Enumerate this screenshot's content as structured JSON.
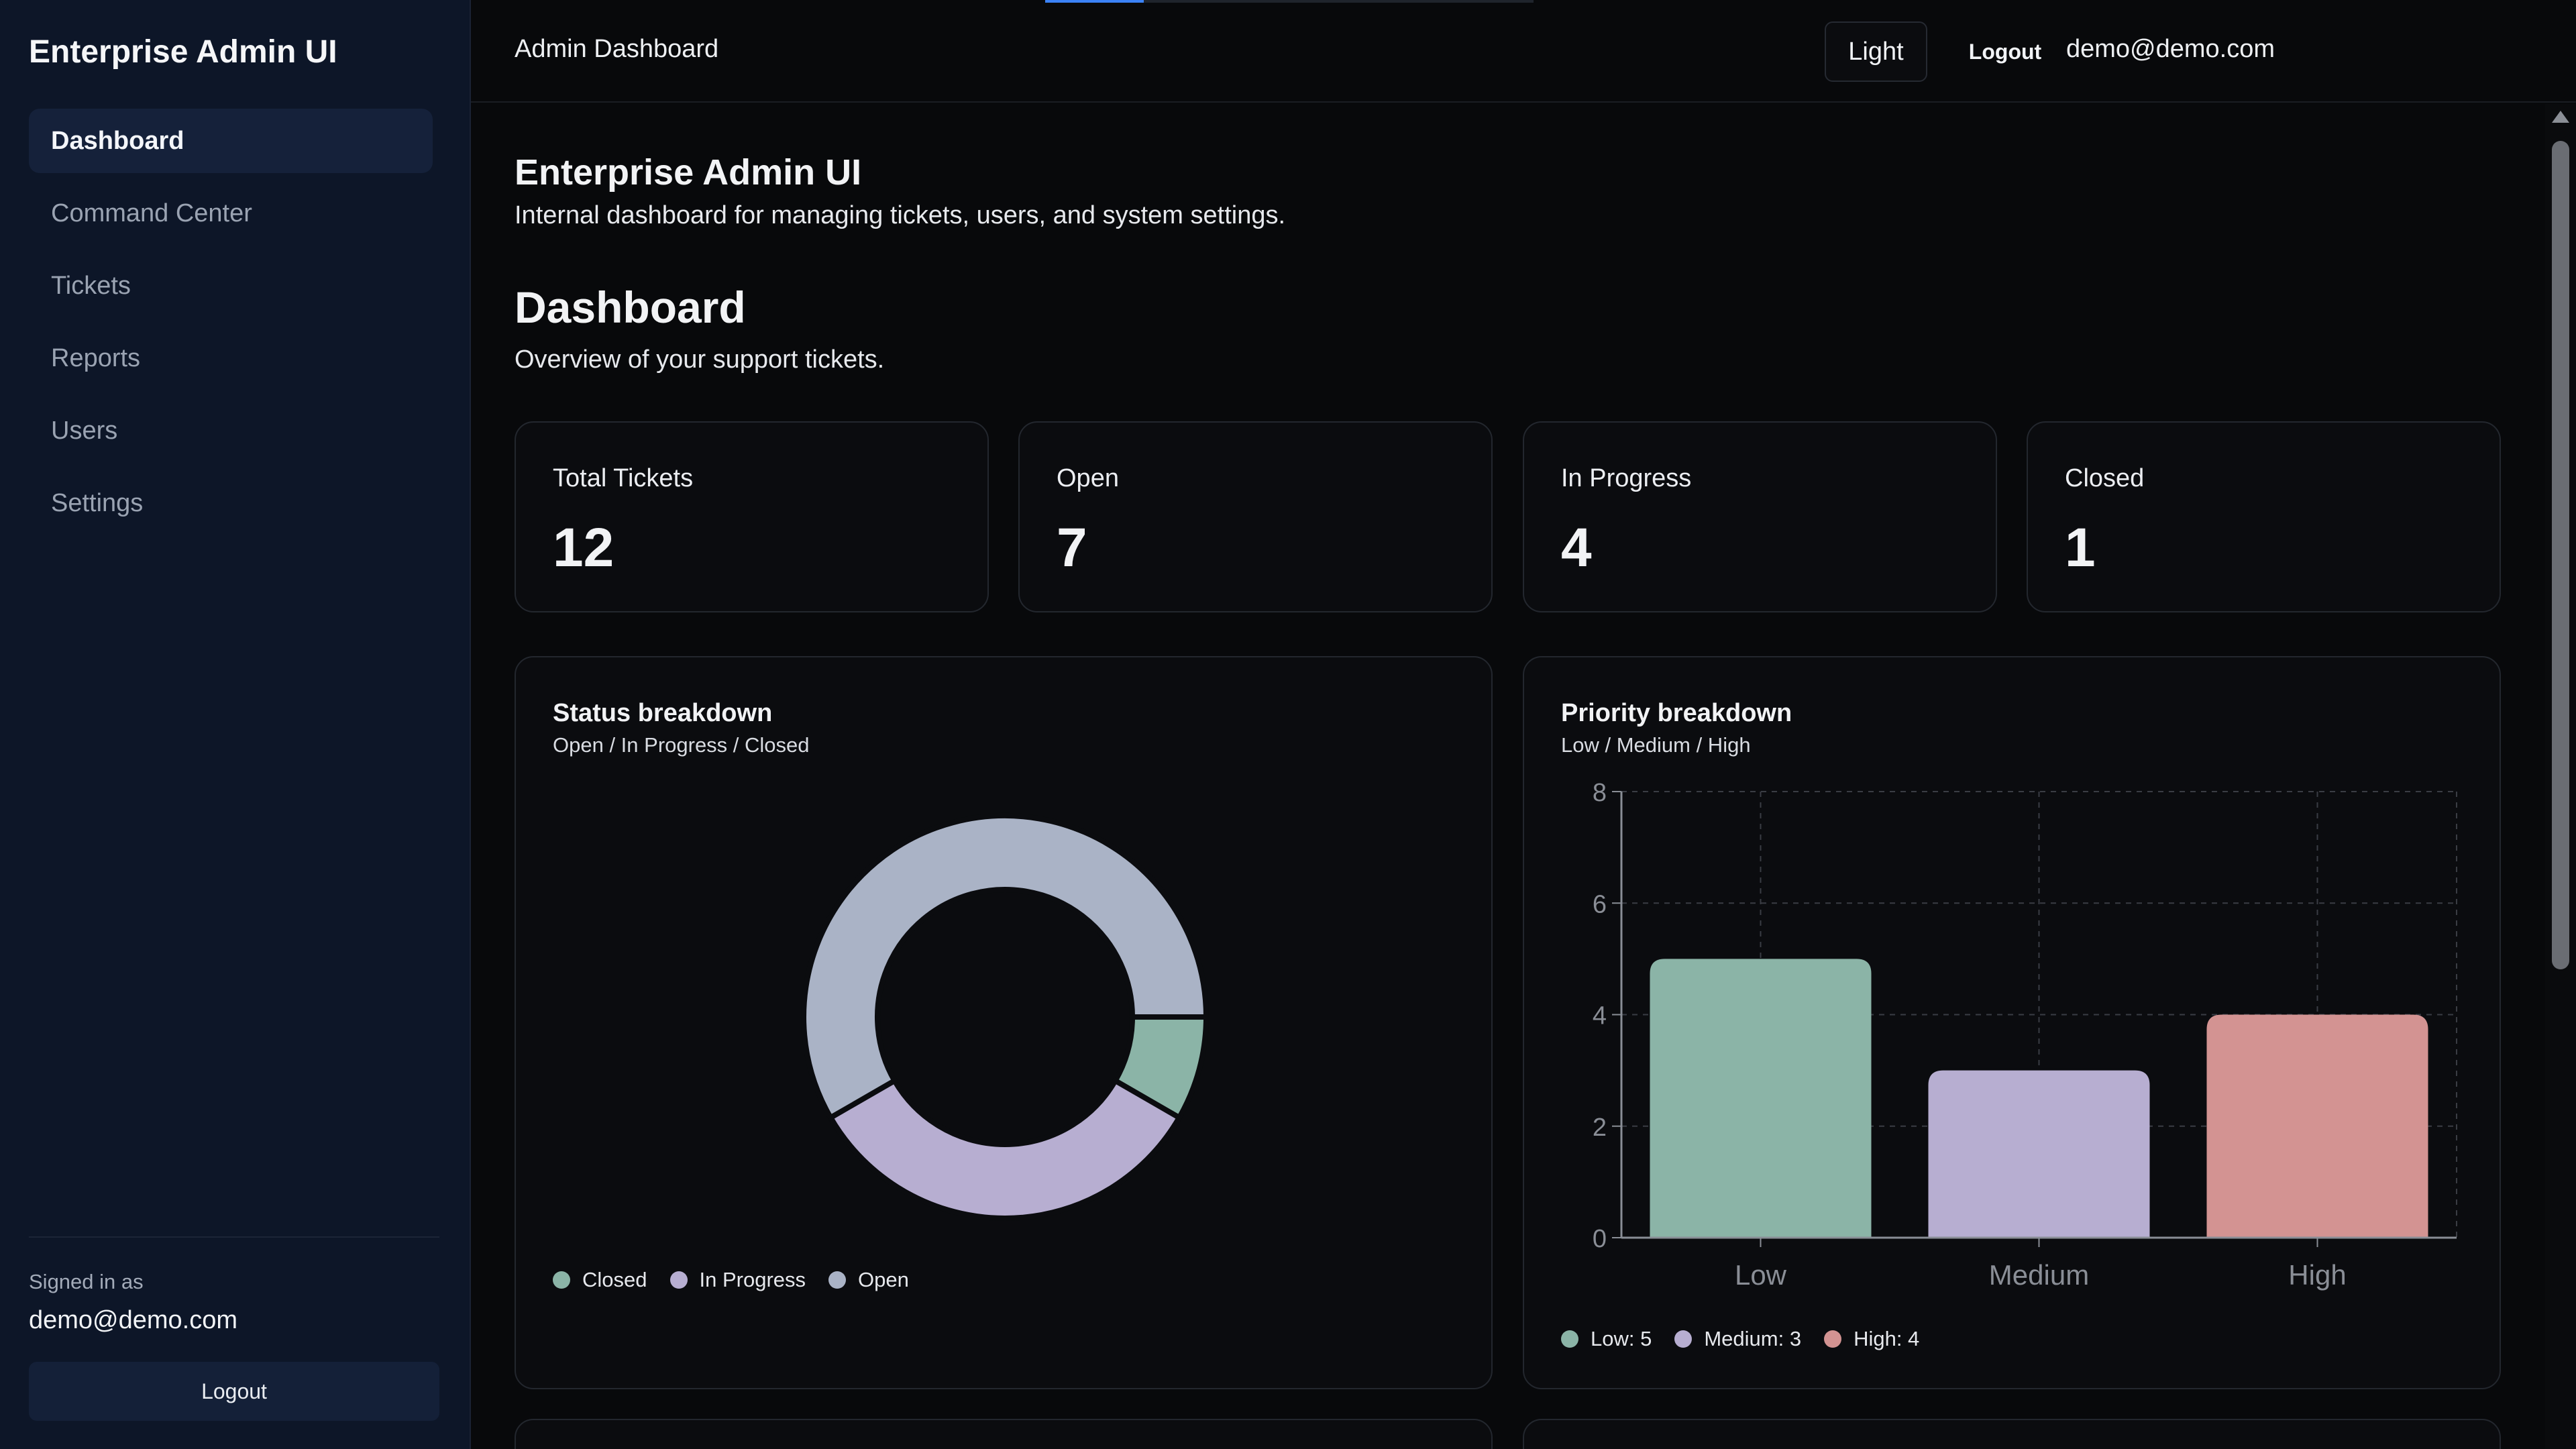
{
  "sidebar": {
    "brand": "Enterprise Admin UI",
    "items": [
      {
        "label": "Dashboard",
        "active": true
      },
      {
        "label": "Command Center",
        "active": false
      },
      {
        "label": "Tickets",
        "active": false
      },
      {
        "label": "Reports",
        "active": false
      },
      {
        "label": "Users",
        "active": false
      },
      {
        "label": "Settings",
        "active": false
      }
    ],
    "signed_in_label": "Signed in as",
    "signed_in_email": "demo@demo.com",
    "logout_label": "Logout"
  },
  "topbar": {
    "title": "Admin Dashboard",
    "email": "demo@demo.com",
    "theme_label": "Light",
    "logout_label": "Logout"
  },
  "main": {
    "app_title": "Enterprise Admin UI",
    "app_subtitle": "Internal dashboard for managing tickets, users, and system settings.",
    "page_title": "Dashboard",
    "page_subtitle": "Overview of your support tickets.",
    "stats": [
      {
        "label": "Total Tickets",
        "value": "12"
      },
      {
        "label": "Open",
        "value": "7"
      },
      {
        "label": "In Progress",
        "value": "4"
      },
      {
        "label": "Closed",
        "value": "1"
      }
    ]
  },
  "colors": {
    "low_closed": "#8bb4a7",
    "medium_in_progress": "#b7aed1",
    "high": "#d39392",
    "open": "#aab3c6",
    "accent": "#3b82f6"
  },
  "chart_data": [
    {
      "type": "pie",
      "title": "Status breakdown",
      "subtitle": "Open / In Progress / Closed",
      "categories": [
        "Closed",
        "In Progress",
        "Open"
      ],
      "values": [
        1,
        4,
        7
      ],
      "donut": true,
      "legend_position": "bottom-left"
    },
    {
      "type": "bar",
      "title": "Priority breakdown",
      "subtitle": "Low / Medium / High",
      "categories": [
        "Low",
        "Medium",
        "High"
      ],
      "values": [
        5,
        3,
        4
      ],
      "yticks": [
        "0",
        "2",
        "4",
        "6",
        "8"
      ],
      "ylim": [
        0,
        8
      ],
      "grid": true,
      "legend": [
        "Low: 5",
        "Medium: 3",
        "High: 4"
      ],
      "legend_position": "bottom-left"
    }
  ]
}
